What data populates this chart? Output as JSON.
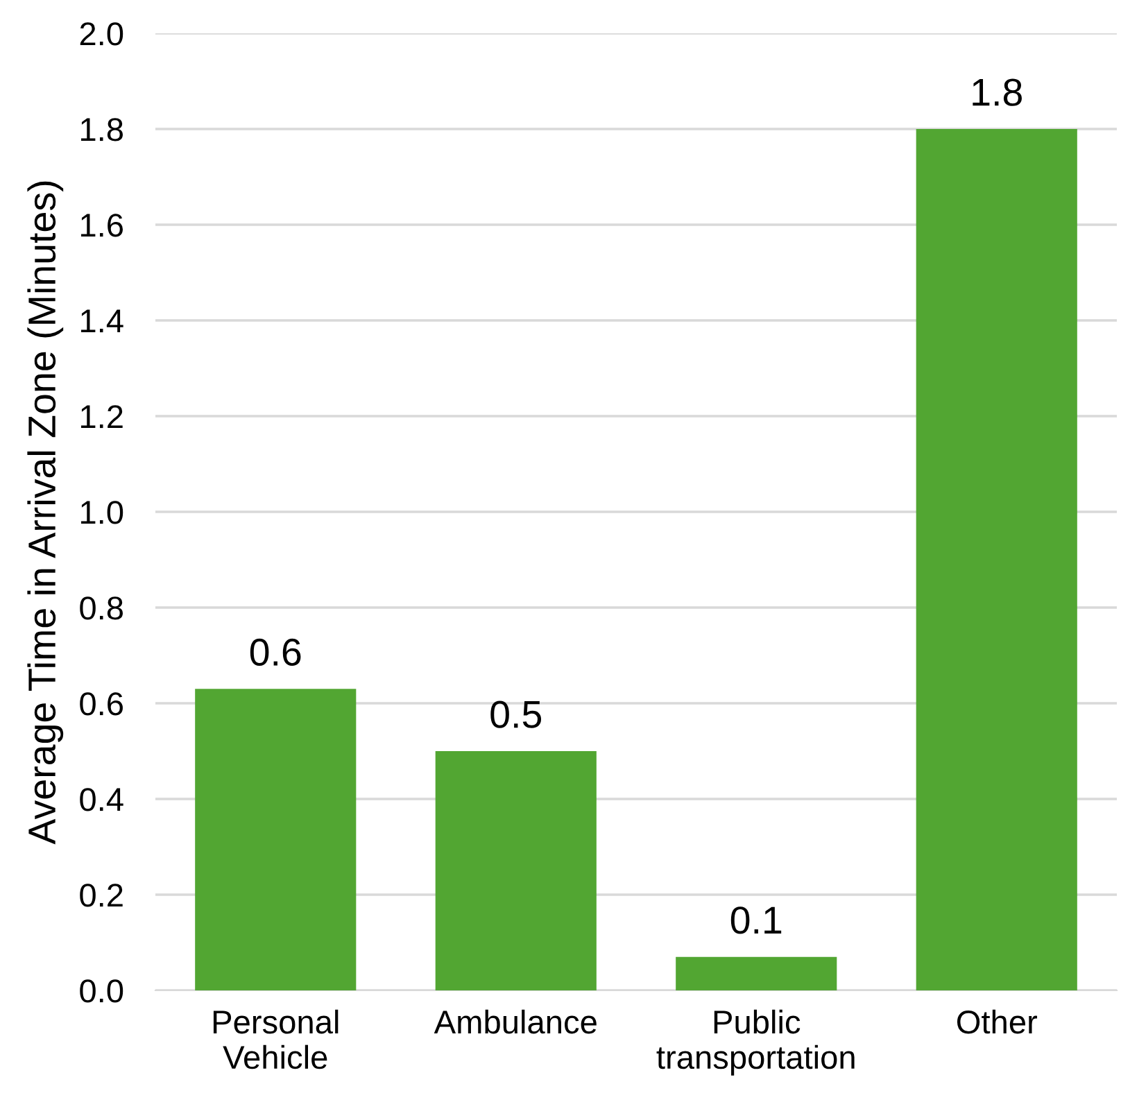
{
  "chart_data": {
    "type": "bar",
    "ylabel": "Average Time in Arrival Zone (Minutes)",
    "categories": [
      "Personal\nVehicle",
      "Ambulance",
      "Public\ntransportation",
      "Other"
    ],
    "values": [
      0.63,
      0.5,
      0.07,
      1.8
    ],
    "value_labels": [
      "0.6",
      "0.5",
      "0.1",
      "1.8"
    ],
    "color": "#52a632",
    "ylim": [
      0,
      2.0
    ],
    "yticks": [
      "0.0",
      "0.2",
      "0.4",
      "0.6",
      "0.8",
      "1.0",
      "1.2",
      "1.4",
      "1.6",
      "1.8",
      "2.0"
    ],
    "grid": "y"
  }
}
